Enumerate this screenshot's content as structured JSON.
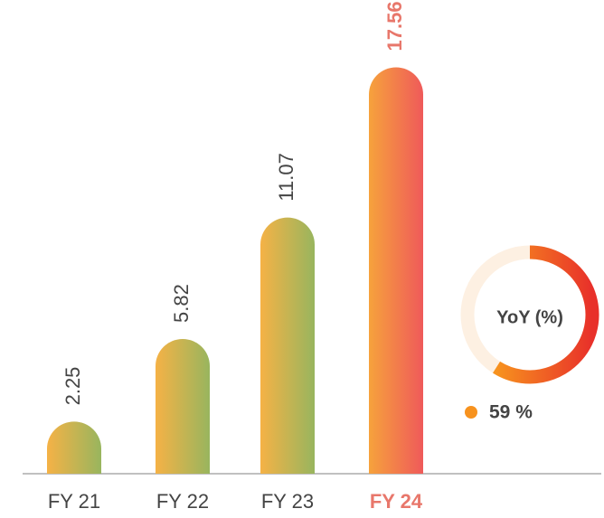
{
  "chart_data": [
    {
      "type": "bar",
      "categories": [
        "FY 21",
        "FY 22",
        "FY 23",
        "FY 24"
      ],
      "values": [
        2.25,
        5.82,
        11.07,
        17.56
      ],
      "colors": [
        [
          "#f5b246",
          "#98b55e"
        ],
        [
          "#f5b246",
          "#98b55e"
        ],
        [
          "#f5b246",
          "#98b55e"
        ],
        [
          "#f6a23c",
          "#ef5a5a"
        ]
      ],
      "label_colors": [
        "#444444",
        "#444444",
        "#444444",
        "#e8776b"
      ]
    },
    {
      "type": "donut",
      "title": "YoY (%)",
      "values": [
        59
      ],
      "value_labels": [
        "59 %"
      ],
      "colors": [
        "#f7921e",
        "#e8302a"
      ],
      "track_color": "#fdf0e2"
    }
  ]
}
